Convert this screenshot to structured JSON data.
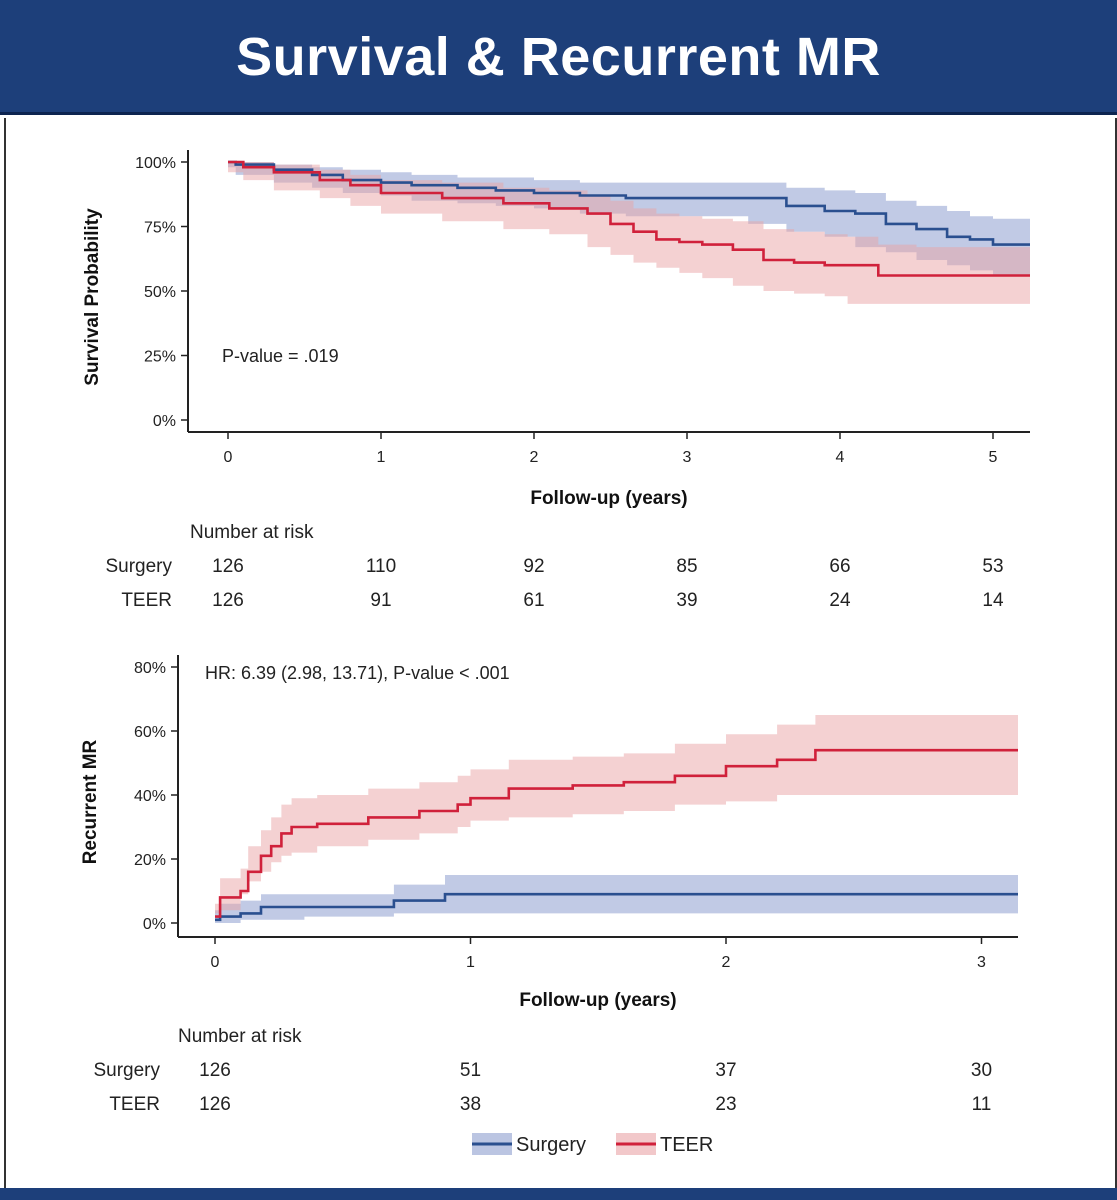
{
  "banner": {
    "title": "Survival & Recurrent MR"
  },
  "colors": {
    "surgery": "#2a4f8f",
    "teer": "#d0213b",
    "surgery_band": "#8e9fcf",
    "teer_band": "#eaa4a6"
  },
  "chart_data": [
    {
      "type": "line",
      "title": "Survival",
      "xlabel": "Follow-up (years)",
      "ylabel": "Survival Probability",
      "xlim": [
        0,
        5.25
      ],
      "ylim": [
        0,
        1
      ],
      "xticks": [
        "0",
        "1",
        "2",
        "3",
        "4",
        "5"
      ],
      "yticks": [
        "0%",
        "25%",
        "50%",
        "75%",
        "100%"
      ],
      "annotation": "P-value = .019",
      "series": [
        {
          "name": "Surgery",
          "x": [
            0,
            0.05,
            0.3,
            0.55,
            0.75,
            1.0,
            1.2,
            1.5,
            1.75,
            2.0,
            2.3,
            2.6,
            2.9,
            3.1,
            3.4,
            3.65,
            3.9,
            4.1,
            4.3,
            4.5,
            4.7,
            4.85,
            5.0,
            5.25
          ],
          "y": [
            1.0,
            0.99,
            0.97,
            0.95,
            0.93,
            0.92,
            0.91,
            0.9,
            0.89,
            0.88,
            0.87,
            0.86,
            0.86,
            0.86,
            0.86,
            0.83,
            0.81,
            0.8,
            0.76,
            0.74,
            0.71,
            0.7,
            0.68,
            0.66
          ],
          "lower": [
            1.0,
            0.98,
            0.95,
            0.92,
            0.9,
            0.88,
            0.87,
            0.85,
            0.84,
            0.83,
            0.82,
            0.8,
            0.79,
            0.79,
            0.79,
            0.76,
            0.73,
            0.71,
            0.67,
            0.65,
            0.62,
            0.6,
            0.58,
            0.56
          ],
          "upper": [
            1.0,
            1.0,
            0.99,
            0.98,
            0.97,
            0.96,
            0.95,
            0.94,
            0.94,
            0.93,
            0.92,
            0.92,
            0.92,
            0.92,
            0.92,
            0.9,
            0.89,
            0.88,
            0.85,
            0.83,
            0.81,
            0.79,
            0.78,
            0.77
          ]
        },
        {
          "name": "TEER",
          "x": [
            0,
            0.1,
            0.3,
            0.6,
            0.8,
            1.0,
            1.4,
            1.8,
            2.1,
            2.35,
            2.5,
            2.65,
            2.8,
            2.95,
            3.1,
            3.3,
            3.5,
            3.7,
            3.9,
            4.05,
            4.25,
            4.5,
            4.8,
            5.25
          ],
          "y": [
            1.0,
            0.98,
            0.96,
            0.93,
            0.91,
            0.88,
            0.86,
            0.84,
            0.82,
            0.8,
            0.76,
            0.73,
            0.7,
            0.69,
            0.68,
            0.66,
            0.62,
            0.61,
            0.6,
            0.6,
            0.56,
            0.56,
            0.56,
            0.56
          ],
          "lower": [
            1.0,
            0.96,
            0.93,
            0.89,
            0.86,
            0.83,
            0.8,
            0.77,
            0.74,
            0.72,
            0.67,
            0.64,
            0.61,
            0.59,
            0.57,
            0.55,
            0.52,
            0.5,
            0.49,
            0.48,
            0.45,
            0.45,
            0.45,
            0.45
          ],
          "upper": [
            1.0,
            1.0,
            0.99,
            0.97,
            0.95,
            0.93,
            0.92,
            0.9,
            0.89,
            0.87,
            0.85,
            0.82,
            0.8,
            0.79,
            0.78,
            0.77,
            0.74,
            0.73,
            0.72,
            0.71,
            0.68,
            0.67,
            0.67,
            0.67
          ]
        }
      ],
      "risk_table": {
        "title": "Number at risk",
        "rows": [
          {
            "label": "Surgery",
            "values": [
              "126",
              "110",
              "92",
              "85",
              "66",
              "53"
            ]
          },
          {
            "label": "TEER",
            "values": [
              "126",
              "91",
              "61",
              "39",
              "24",
              "14"
            ]
          }
        ]
      }
    },
    {
      "type": "line",
      "title": "Recurrent MR",
      "xlabel": "Follow-up (years)",
      "ylabel": "Recurrent MR",
      "xlim": [
        0,
        3.15
      ],
      "ylim": [
        0,
        0.8
      ],
      "xticks": [
        "0",
        "1",
        "2",
        "3"
      ],
      "yticks": [
        "0%",
        "20%",
        "40%",
        "60%",
        "80%"
      ],
      "annotation": "HR: 6.39 (2.98, 13.71), P-value < .001",
      "series": [
        {
          "name": "Surgery",
          "x": [
            0,
            0.02,
            0.1,
            0.18,
            0.35,
            0.7,
            0.9,
            1.5,
            2.0,
            2.5,
            3.15
          ],
          "y": [
            0.01,
            0.02,
            0.03,
            0.05,
            0.05,
            0.07,
            0.09,
            0.09,
            0.09,
            0.09,
            0.09
          ],
          "lower": [
            0.0,
            0.0,
            0.0,
            0.01,
            0.01,
            0.02,
            0.03,
            0.03,
            0.03,
            0.03,
            0.03
          ],
          "upper": [
            0.04,
            0.06,
            0.07,
            0.09,
            0.09,
            0.12,
            0.15,
            0.15,
            0.15,
            0.15,
            0.15
          ]
        },
        {
          "name": "TEER",
          "x": [
            0,
            0.02,
            0.1,
            0.13,
            0.18,
            0.22,
            0.26,
            0.3,
            0.4,
            0.6,
            0.8,
            0.95,
            1.0,
            1.15,
            1.4,
            1.6,
            1.8,
            2.0,
            2.2,
            2.35,
            2.6,
            2.8,
            3.15
          ],
          "y": [
            0.02,
            0.08,
            0.1,
            0.16,
            0.21,
            0.24,
            0.28,
            0.3,
            0.31,
            0.33,
            0.35,
            0.37,
            0.39,
            0.42,
            0.43,
            0.44,
            0.46,
            0.49,
            0.51,
            0.54,
            0.54,
            0.54,
            0.54
          ],
          "lower": [
            0.0,
            0.03,
            0.04,
            0.09,
            0.13,
            0.16,
            0.19,
            0.21,
            0.22,
            0.24,
            0.26,
            0.28,
            0.3,
            0.32,
            0.33,
            0.34,
            0.35,
            0.37,
            0.38,
            0.4,
            0.4,
            0.4,
            0.4
          ],
          "upper": [
            0.06,
            0.14,
            0.17,
            0.24,
            0.29,
            0.33,
            0.37,
            0.39,
            0.4,
            0.42,
            0.44,
            0.46,
            0.48,
            0.51,
            0.52,
            0.53,
            0.56,
            0.59,
            0.62,
            0.65,
            0.65,
            0.65,
            0.65
          ]
        }
      ],
      "risk_table": {
        "title": "Number at risk",
        "rows": [
          {
            "label": "Surgery",
            "values": [
              "126",
              "51",
              "37",
              "30"
            ]
          },
          {
            "label": "TEER",
            "values": [
              "126",
              "38",
              "23",
              "11"
            ]
          }
        ]
      }
    }
  ],
  "legend": {
    "items": [
      {
        "name": "Surgery",
        "label": "Surgery"
      },
      {
        "name": "TEER",
        "label": "TEER"
      }
    ]
  }
}
